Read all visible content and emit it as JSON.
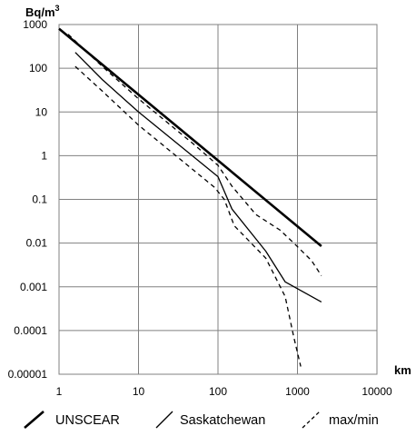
{
  "chart_data": {
    "type": "line",
    "title": "",
    "ylabel": "Bq/m",
    "ylabel_sup": "3",
    "xlabel": "km",
    "xscale": "log",
    "yscale": "log",
    "xlim": [
      1,
      10000
    ],
    "ylim": [
      1e-05,
      1000
    ],
    "grid": true,
    "legend_position": "bottom",
    "x_ticks": [
      "1",
      "10",
      "100",
      "1000",
      "10000"
    ],
    "y_ticks": [
      "1000",
      "100",
      "10",
      "1",
      "0.1",
      "0.01",
      "0.001",
      "0.0001",
      "0.00001"
    ],
    "series": [
      {
        "name": "UNSCEAR",
        "style": "thick",
        "color": "#000000",
        "points": [
          [
            1,
            800
          ],
          [
            2000,
            0.0085
          ]
        ]
      },
      {
        "name": "Saskatchewan",
        "style": "thin",
        "color": "#000000",
        "points": [
          [
            1.6,
            230
          ],
          [
            3.5,
            55
          ],
          [
            10,
            10
          ],
          [
            100,
            0.33
          ],
          [
            150,
            0.06
          ],
          [
            400,
            0.0065
          ],
          [
            700,
            0.0013
          ],
          [
            2000,
            0.00045
          ]
        ]
      },
      {
        "name": "max/min",
        "style": "dashed",
        "color": "#000000",
        "points": [
          [
            1.3,
            600
          ],
          [
            3.5,
            110
          ],
          [
            10,
            20
          ],
          [
            50,
            1.8
          ],
          [
            100,
            0.6
          ],
          [
            150,
            0.2
          ],
          [
            300,
            0.045
          ],
          [
            600,
            0.02
          ],
          [
            900,
            0.01
          ],
          [
            1500,
            0.004
          ],
          [
            2000,
            0.0018
          ]
        ]
      },
      {
        "name": "max/min",
        "style": "dashed",
        "color": "#000000",
        "points": [
          [
            1.6,
            110
          ],
          [
            3.5,
            30
          ],
          [
            10,
            5
          ],
          [
            90,
            0.19
          ],
          [
            120,
            0.1
          ],
          [
            160,
            0.025
          ],
          [
            400,
            0.0045
          ],
          [
            700,
            0.0006
          ],
          [
            900,
            7e-05
          ],
          [
            1100,
            1.5e-05
          ]
        ]
      }
    ]
  }
}
